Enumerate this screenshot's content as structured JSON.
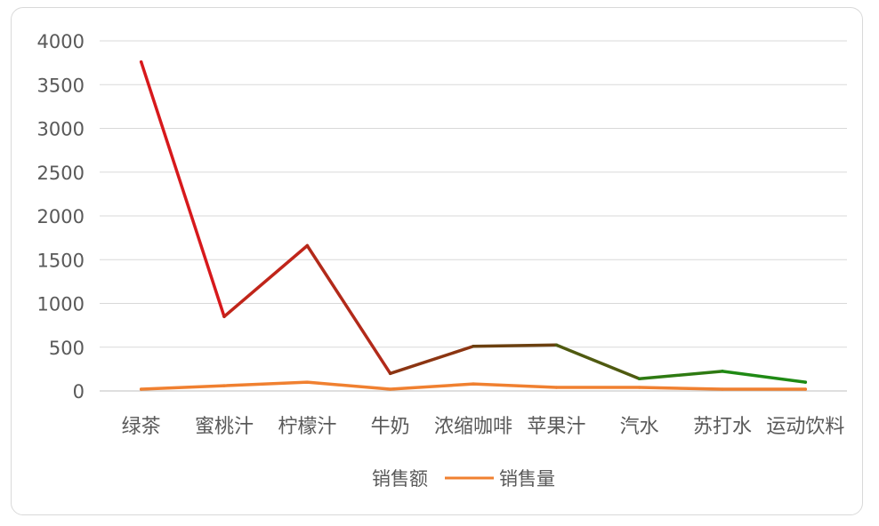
{
  "chart_data": {
    "type": "line",
    "title": "",
    "xlabel": "",
    "ylabel": "",
    "categories": [
      "绿茶",
      "蜜桃汁",
      "柠檬汁",
      "牛奶",
      "浓缩咖啡",
      "苹果汁",
      "汽水",
      "苏打水",
      "运动饮料"
    ],
    "ylim": [
      0,
      4000
    ],
    "yticks": [
      0,
      500,
      1000,
      1500,
      2000,
      2500,
      3000,
      3500,
      4000
    ],
    "grid": true,
    "legend": "bottom-center",
    "series": [
      {
        "name": "销售额",
        "values": [
          3760,
          850,
          1660,
          200,
          510,
          525,
          140,
          225,
          100
        ],
        "colors": [
          "#d7191c",
          "#c0251a",
          "#b22a1a",
          "#8b3512",
          "#6b4010",
          "#4f5a10",
          "#2e7a12",
          "#1f8a14",
          "#1a8a14"
        ]
      },
      {
        "name": "销售量",
        "values": [
          20,
          60,
          100,
          20,
          80,
          40,
          40,
          20,
          20
        ],
        "color": "#f08030"
      }
    ]
  }
}
